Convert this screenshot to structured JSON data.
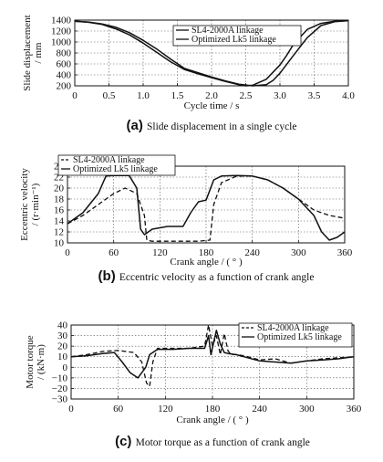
{
  "chart_data": [
    {
      "type": "line",
      "caption_letter": "(a)",
      "caption": "Slide displacement in a single cycle",
      "xlabel": "Cycle time / s",
      "ylabel_line1": "Slide displacement",
      "ylabel_line2": "/ mm",
      "xlim": [
        0,
        4.0
      ],
      "ylim": [
        200,
        1400
      ],
      "xticks": [
        "0",
        "0.5",
        "1.0",
        "1.5",
        "2.0",
        "2.5",
        "3.0",
        "3.5",
        "4.0"
      ],
      "yticks": [
        "200",
        "400",
        "600",
        "800",
        "1000",
        "1200",
        "1400"
      ],
      "grid": true,
      "legend_position": "top-right",
      "series": [
        {
          "name": "SL4-2000A linkage",
          "style": "solid",
          "x": [
            0,
            0.2,
            0.4,
            0.6,
            0.8,
            1.0,
            1.2,
            1.4,
            1.6,
            1.8,
            2.0,
            2.2,
            2.4,
            2.5,
            2.6,
            2.8,
            3.0,
            3.1,
            3.2,
            3.4,
            3.6,
            3.8,
            4.0
          ],
          "y": [
            1380,
            1360,
            1320,
            1240,
            1130,
            980,
            810,
            640,
            500,
            420,
            350,
            280,
            220,
            200,
            210,
            320,
            580,
            760,
            960,
            1230,
            1340,
            1380,
            1390
          ]
        },
        {
          "name": "Optimized Lk5 linkage",
          "style": "solid",
          "x": [
            0,
            0.2,
            0.4,
            0.6,
            0.8,
            1.0,
            1.2,
            1.4,
            1.6,
            1.8,
            2.0,
            2.2,
            2.4,
            2.6,
            2.8,
            2.9,
            3.0,
            3.2,
            3.4,
            3.6,
            3.8,
            4.0
          ],
          "y": [
            1380,
            1365,
            1330,
            1270,
            1170,
            1030,
            870,
            690,
            520,
            440,
            360,
            290,
            230,
            200,
            220,
            300,
            430,
            760,
            1080,
            1300,
            1370,
            1390
          ]
        }
      ]
    },
    {
      "type": "line",
      "caption_letter": "(b)",
      "caption": "Eccentric velocity as a function of crank angle",
      "xlabel": "Crank angle / ( ° )",
      "ylabel_line1": "Eccentric velocity",
      "ylabel_line2": "/ (r·min⁻¹)",
      "xlim": [
        0,
        360
      ],
      "ylim": [
        10,
        24
      ],
      "xticks": [
        "0",
        "60",
        "120",
        "180",
        "240",
        "300",
        "360"
      ],
      "yticks": [
        "10",
        "12",
        "14",
        "16",
        "18",
        "20",
        "22",
        "24"
      ],
      "grid": true,
      "legend_position": "top-left",
      "series": [
        {
          "name": "SL4-2000A linkage",
          "style": "dashed",
          "x": [
            0,
            20,
            40,
            60,
            75,
            90,
            100,
            103,
            110,
            130,
            150,
            170,
            185,
            190,
            200,
            220,
            240,
            260,
            280,
            300,
            320,
            340,
            360
          ],
          "y": [
            13.5,
            15,
            17,
            19,
            20,
            19,
            15,
            10.5,
            10.3,
            10.3,
            10.3,
            10.3,
            10.5,
            17,
            21,
            22.2,
            22.2,
            21.5,
            20,
            18,
            16,
            15,
            14.5
          ]
        },
        {
          "name": "Optimized Lk5 linkage",
          "style": "solid",
          "x": [
            0,
            20,
            40,
            50,
            60,
            80,
            90,
            95,
            100,
            110,
            130,
            150,
            160,
            170,
            180,
            190,
            200,
            220,
            240,
            260,
            280,
            300,
            320,
            330,
            340,
            350,
            360
          ],
          "y": [
            13.5,
            15.5,
            19,
            22.2,
            22.3,
            22.3,
            20,
            12.5,
            11.5,
            12.5,
            13,
            13,
            15.5,
            17.5,
            17.8,
            21.5,
            22.2,
            22.3,
            22.2,
            21.5,
            20,
            18,
            15,
            12,
            10.5,
            11,
            12
          ]
        }
      ]
    },
    {
      "type": "line",
      "caption_letter": "(c)",
      "caption": "Motor torque as a function of crank angle",
      "xlabel": "Crank angle / ( ° )",
      "ylabel_line1": "Motor torque",
      "ylabel_line2": "/ (kN·m)",
      "xlim": [
        0,
        360
      ],
      "ylim": [
        -30,
        40
      ],
      "xticks": [
        "0",
        "60",
        "120",
        "180",
        "240",
        "300",
        "360"
      ],
      "yticks": [
        "−30",
        "−20",
        "−10",
        "0",
        "10",
        "20",
        "30",
        "40"
      ],
      "grid": true,
      "legend_position": "top-right",
      "series": [
        {
          "name": "SL4-2000A linkage",
          "style": "dashed",
          "x": [
            0,
            20,
            40,
            60,
            80,
            90,
            96,
            100,
            104,
            110,
            130,
            150,
            170,
            175,
            180,
            185,
            190,
            195,
            200,
            205,
            210,
            220,
            240,
            260,
            280,
            300,
            320,
            340,
            360
          ],
          "y": [
            10,
            12,
            15,
            16,
            14,
            5,
            -15,
            -18,
            5,
            18,
            18,
            18,
            20,
            40,
            20,
            30,
            12,
            32,
            15,
            12,
            12,
            11,
            7,
            8,
            4,
            6,
            8,
            9,
            10
          ]
        },
        {
          "name": "Optimized Lk5 linkage",
          "style": "solid",
          "x": [
            0,
            20,
            40,
            55,
            65,
            75,
            85,
            95,
            100,
            110,
            130,
            150,
            170,
            175,
            178,
            182,
            185,
            190,
            195,
            200,
            210,
            220,
            240,
            260,
            280,
            300,
            320,
            340,
            360
          ],
          "y": [
            10,
            11,
            13,
            14,
            5,
            -5,
            -10,
            0,
            12,
            17,
            17,
            18,
            18,
            30,
            12,
            25,
            35,
            22,
            14,
            13,
            12,
            10,
            6,
            5,
            4,
            6,
            7,
            8,
            10
          ]
        }
      ]
    }
  ]
}
